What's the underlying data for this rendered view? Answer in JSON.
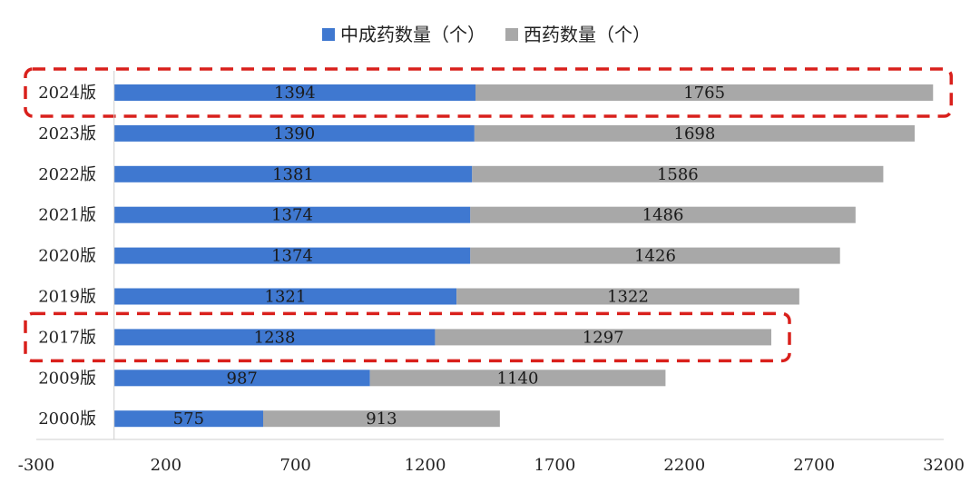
{
  "colors": {
    "series_blue": "#3f78d0",
    "series_gray": "#a8a8a8",
    "highlight": "#d9201c",
    "axis": "#cfcfcf"
  },
  "chart_data": {
    "type": "bar",
    "orientation": "horizontal",
    "stacked": true,
    "categories": [
      "2024版",
      "2023版",
      "2022版",
      "2021版",
      "2020版",
      "2019版",
      "2017版",
      "2009版",
      "2000版"
    ],
    "series": [
      {
        "name": "中成药数量（个）",
        "values": [
          1394,
          1390,
          1381,
          1374,
          1374,
          1321,
          1238,
          987,
          575
        ]
      },
      {
        "name": "西药数量（个）",
        "values": [
          1765,
          1698,
          1586,
          1486,
          1426,
          1322,
          1297,
          1140,
          913
        ]
      }
    ],
    "xlim": [
      -300,
      3200
    ],
    "xticks": [
      "-300",
      "200",
      "700",
      "1200",
      "1700",
      "2200",
      "2700",
      "3200"
    ],
    "legend_position": "top-center",
    "highlighted_categories": [
      "2024版",
      "2017版"
    ],
    "grid": false
  }
}
